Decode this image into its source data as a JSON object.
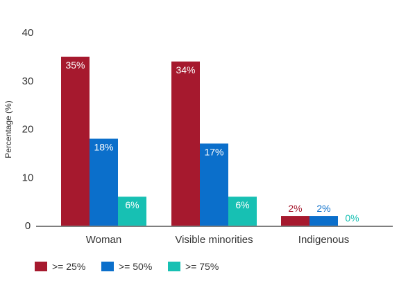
{
  "chart_data": {
    "type": "bar",
    "title": "",
    "xlabel": "",
    "ylabel": "Percentage (%)",
    "ylim": [
      0,
      40
    ],
    "yticks": [
      0,
      10,
      20,
      30,
      40
    ],
    "grid": false,
    "legend_position": "bottom-left",
    "categories": [
      "Woman",
      "Visible minorities",
      "Indigenous"
    ],
    "series": [
      {
        "name": ">= 25%",
        "color": "#a6192e",
        "values": [
          35,
          34,
          2
        ],
        "labels": [
          "35%",
          "34%",
          "2%"
        ]
      },
      {
        "name": ">= 50%",
        "color": "#0b6fcb",
        "values": [
          18,
          17,
          2
        ],
        "labels": [
          "18%",
          "17%",
          "2%"
        ]
      },
      {
        "name": ">= 75%",
        "color": "#17c0b3",
        "values": [
          6,
          6,
          0
        ],
        "labels": [
          "6%",
          "6%",
          "0%"
        ]
      }
    ]
  }
}
